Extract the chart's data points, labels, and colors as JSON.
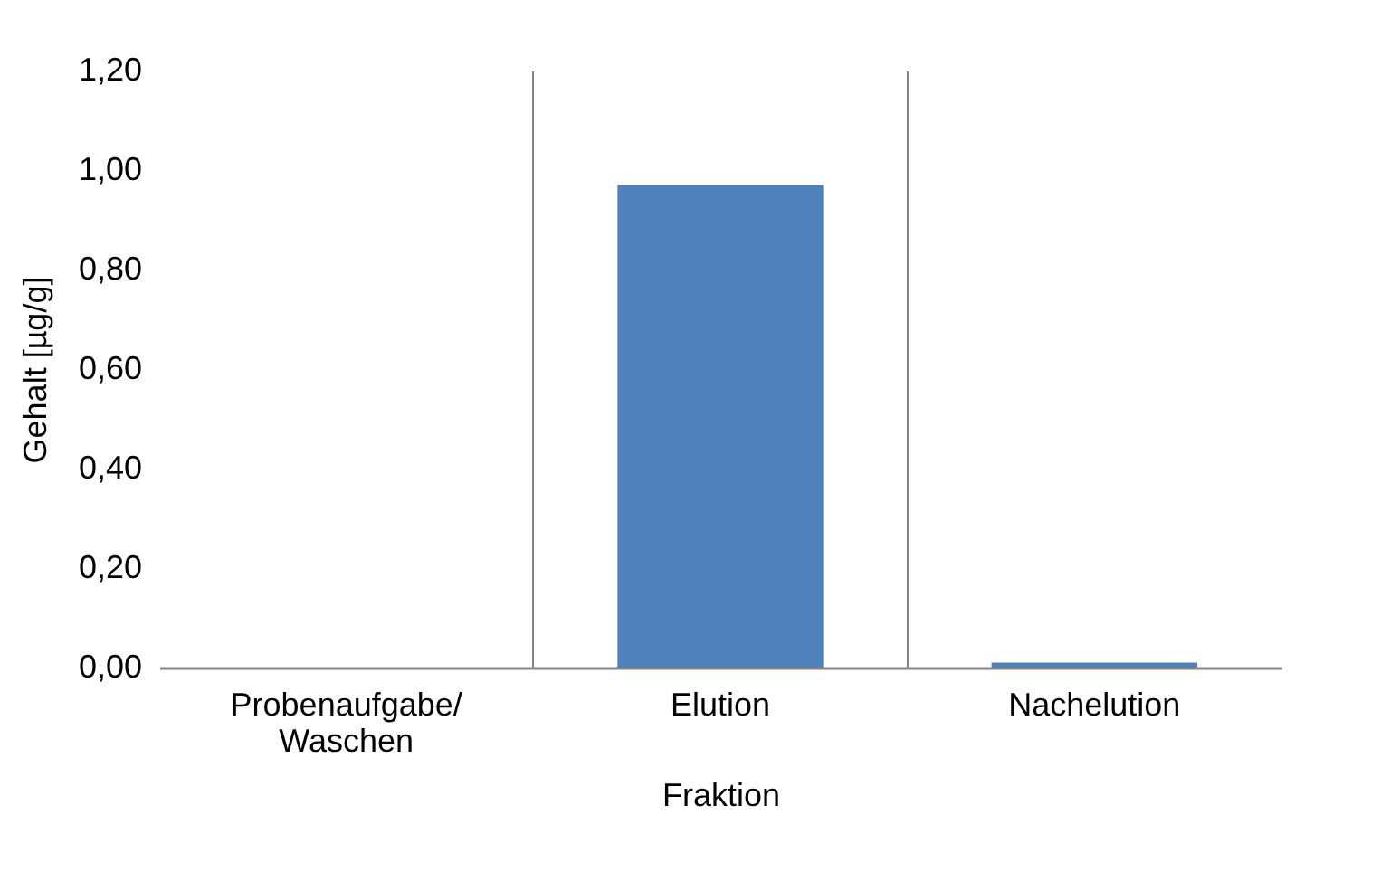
{
  "chart_data": {
    "type": "bar",
    "xlabel": "Fraktion",
    "ylabel": "Gehalt [µg/g]",
    "categories": [
      "Probenaufgabe/ Waschen",
      "Elution",
      "Nachelution"
    ],
    "values": [
      0,
      0.97,
      0.01
    ],
    "color": "#4f81bd",
    "ylim": [
      0,
      1.2
    ],
    "yticks": [
      {
        "value": 0,
        "label": "0,00"
      },
      {
        "value": 0.2,
        "label": "0,20"
      },
      {
        "value": 0.4,
        "label": "0,40"
      },
      {
        "value": 0.6,
        "label": "0,60"
      },
      {
        "value": 0.8,
        "label": "0,80"
      },
      {
        "value": 1,
        "label": "1,00"
      },
      {
        "value": 1.2,
        "label": "1,20"
      }
    ],
    "grid": "x"
  }
}
